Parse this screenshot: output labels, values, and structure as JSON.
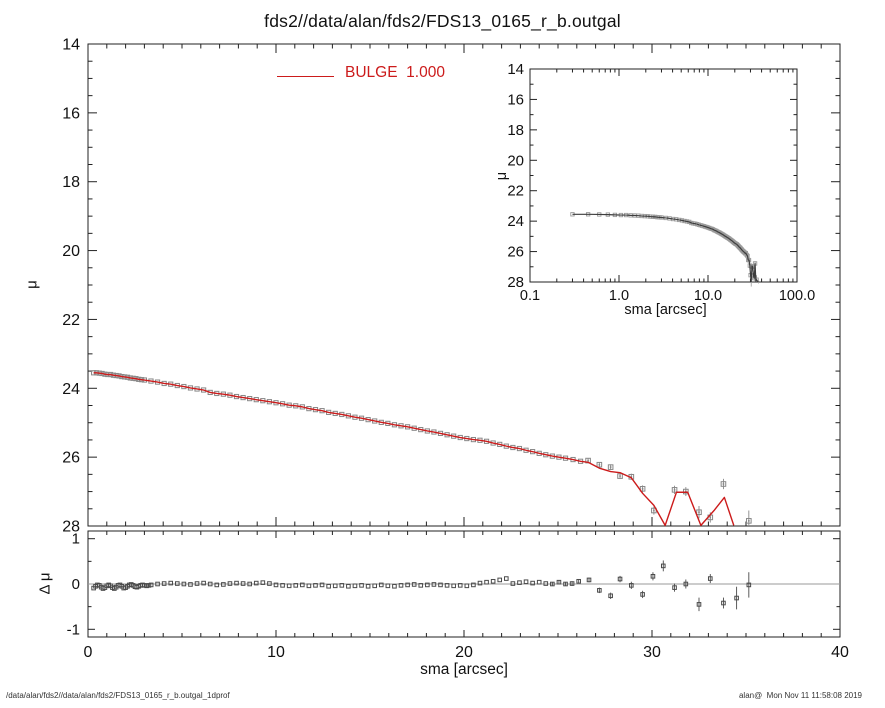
{
  "window": {
    "background": "#ffffff"
  },
  "footer": {
    "left": "/data/alan/fds2//data/alan/fds2/FDS13_0165_r_b.outgal_1dprof",
    "right": "alan@  Mon Nov 11 11:58:08 2019"
  },
  "chart_data": {
    "colors": {
      "axis": "#222222",
      "model_red": "#cc1b1b",
      "square_gray": "#878787",
      "inset_square": "#9a9a9a",
      "inset_line": "#3d3d3d",
      "residual_marker": "#4a4a4a",
      "zero_line": "#999999",
      "text": "#111111"
    },
    "main": {
      "type": "line+scatter",
      "title": "fds2//data/alan/fds2/FDS13_0165_r_b.outgal",
      "ylabel": "μ",
      "xlim": [
        0,
        40
      ],
      "ylim": [
        14,
        28
      ],
      "y_inverted": true,
      "xminor_step": 1,
      "yminor_step": 0.5,
      "ytick_values": [
        14,
        16,
        18,
        20,
        22,
        24,
        26,
        28
      ],
      "ytick_labels": [
        "14",
        "16",
        "18",
        "20",
        "22",
        "24",
        "26",
        "28"
      ],
      "legend": {
        "label": "BULGE  1.000",
        "color": "#cc1b1b",
        "series": "bulge-model"
      }
    },
    "inset": {
      "type": "line+scatter",
      "xlabel": "sma [arcsec]",
      "ylabel": "μ",
      "xscale": "log",
      "xlim": [
        0.1,
        100
      ],
      "ylim": [
        14,
        28
      ],
      "y_inverted": true,
      "xtick_values": [
        0.1,
        1,
        10,
        100
      ],
      "xtick_labels": [
        "0.1",
        "1.0",
        "10.0",
        "100.0"
      ],
      "ytick_values": [
        14,
        16,
        18,
        20,
        22,
        24,
        26,
        28
      ],
      "ytick_labels": [
        "14",
        "16",
        "18",
        "20",
        "22",
        "24",
        "26",
        "28"
      ],
      "yminor_step": 1
    },
    "residual_panel": {
      "type": "scatter",
      "xlabel": "sma [arcsec]",
      "ylabel": "Δ μ",
      "xlim": [
        0,
        40
      ],
      "ylim": [
        -1,
        1
      ],
      "xminor_step": 1,
      "yminor_step": 0.5,
      "xtick_values": [
        0,
        10,
        20,
        30,
        40
      ],
      "xtick_labels": [
        "0",
        "10",
        "20",
        "30",
        "40"
      ],
      "ytick_values": [
        1,
        0,
        -1
      ],
      "ytick_labels": [
        "1",
        "0",
        "-1"
      ],
      "zero_line": true
    },
    "profile_points": [
      [
        0.3,
        23.55
      ],
      [
        0.45,
        23.55
      ],
      [
        0.6,
        23.56
      ],
      [
        0.75,
        23.57
      ],
      [
        0.9,
        23.59
      ],
      [
        1.05,
        23.6
      ],
      [
        1.2,
        23.6
      ],
      [
        1.35,
        23.62
      ],
      [
        1.5,
        23.63
      ],
      [
        1.65,
        23.64
      ],
      [
        1.8,
        23.66
      ],
      [
        1.95,
        23.67
      ],
      [
        2.1,
        23.68
      ],
      [
        2.25,
        23.7
      ],
      [
        2.4,
        23.71
      ],
      [
        2.55,
        23.72
      ],
      [
        2.7,
        23.74
      ],
      [
        2.85,
        23.75
      ],
      [
        3.0,
        23.76
      ],
      [
        3.35,
        23.79
      ],
      [
        3.7,
        23.82
      ],
      [
        4.05,
        23.86
      ],
      [
        4.4,
        23.88
      ],
      [
        4.75,
        23.92
      ],
      [
        5.1,
        23.95
      ],
      [
        5.45,
        23.99
      ],
      [
        5.8,
        24.02
      ],
      [
        6.15,
        24.05
      ],
      [
        6.5,
        24.12
      ],
      [
        6.85,
        24.15
      ],
      [
        7.2,
        24.17
      ],
      [
        7.55,
        24.2
      ],
      [
        7.9,
        24.24
      ],
      [
        8.25,
        24.27
      ],
      [
        8.6,
        24.3
      ],
      [
        8.95,
        24.33
      ],
      [
        9.3,
        24.36
      ],
      [
        9.65,
        24.39
      ],
      [
        10.0,
        24.42
      ],
      [
        10.35,
        24.45
      ],
      [
        10.7,
        24.49
      ],
      [
        11.05,
        24.51
      ],
      [
        11.4,
        24.54
      ],
      [
        11.75,
        24.59
      ],
      [
        12.1,
        24.62
      ],
      [
        12.45,
        24.65
      ],
      [
        12.8,
        24.7
      ],
      [
        13.15,
        24.73
      ],
      [
        13.5,
        24.76
      ],
      [
        13.85,
        24.8
      ],
      [
        14.2,
        24.84
      ],
      [
        14.55,
        24.87
      ],
      [
        14.9,
        24.91
      ],
      [
        15.25,
        24.95
      ],
      [
        15.6,
        24.99
      ],
      [
        15.95,
        25.02
      ],
      [
        16.3,
        25.06
      ],
      [
        16.65,
        25.09
      ],
      [
        17.0,
        25.12
      ],
      [
        17.35,
        25.16
      ],
      [
        17.7,
        25.2
      ],
      [
        18.05,
        25.24
      ],
      [
        18.4,
        25.27
      ],
      [
        18.75,
        25.31
      ],
      [
        19.1,
        25.35
      ],
      [
        19.45,
        25.39
      ],
      [
        19.8,
        25.43
      ],
      [
        20.15,
        25.46
      ],
      [
        20.5,
        25.49
      ],
      [
        20.85,
        25.51
      ],
      [
        21.2,
        25.54
      ],
      [
        21.55,
        25.59
      ],
      [
        21.9,
        25.63
      ],
      [
        22.25,
        25.68
      ],
      [
        22.6,
        25.72
      ],
      [
        22.95,
        25.75
      ],
      [
        23.3,
        25.8
      ],
      [
        23.65,
        25.84
      ],
      [
        24.0,
        25.89
      ],
      [
        24.35,
        25.93
      ],
      [
        24.7,
        25.97
      ],
      [
        25.05,
        26.0
      ],
      [
        25.4,
        26.03
      ],
      [
        25.8,
        26.07
      ],
      [
        26.2,
        26.12
      ],
      [
        26.6,
        26.1,
        0.06
      ],
      [
        27.2,
        26.22,
        0.07
      ],
      [
        27.8,
        26.29,
        0.08
      ],
      [
        28.3,
        26.55,
        0.08
      ],
      [
        28.9,
        26.57,
        0.09
      ],
      [
        29.5,
        26.92,
        0.1
      ],
      [
        30.1,
        27.55,
        0.12
      ],
      [
        30.6,
        28.45,
        0.15
      ],
      [
        31.2,
        26.95,
        0.12
      ],
      [
        31.8,
        27.0,
        0.13
      ],
      [
        32.5,
        27.6,
        0.18
      ],
      [
        33.1,
        27.75,
        0.15
      ],
      [
        33.8,
        26.78,
        0.15
      ],
      [
        34.5,
        28.2,
        0.3
      ],
      [
        35.15,
        27.85,
        0.3
      ],
      [
        36.0,
        28.3,
        0.4
      ],
      [
        37.0,
        28.6,
        0.5
      ]
    ],
    "model_tail": [
      [
        26.6,
        26.15
      ],
      [
        27.2,
        26.32
      ],
      [
        27.8,
        26.42
      ],
      [
        28.3,
        26.45
      ],
      [
        28.9,
        26.6
      ],
      [
        29.5,
        27.05
      ],
      [
        30.1,
        27.4
      ],
      [
        30.7,
        28.1
      ],
      [
        31.3,
        27.02
      ],
      [
        31.9,
        27.02
      ],
      [
        32.6,
        28.12
      ],
      [
        33.3,
        27.55
      ],
      [
        33.85,
        27.17
      ],
      [
        34.35,
        28.2
      ]
    ],
    "residual_points": [
      [
        0.3,
        -0.09
      ],
      [
        0.4,
        -0.05
      ],
      [
        0.5,
        -0.02
      ],
      [
        0.6,
        -0.03
      ],
      [
        0.7,
        -0.07
      ],
      [
        0.8,
        -0.1
      ],
      [
        0.9,
        -0.08
      ],
      [
        1.0,
        -0.04
      ],
      [
        1.1,
        -0.02
      ],
      [
        1.2,
        -0.04
      ],
      [
        1.3,
        -0.08
      ],
      [
        1.4,
        -0.1
      ],
      [
        1.5,
        -0.07
      ],
      [
        1.6,
        -0.03
      ],
      [
        1.7,
        -0.02
      ],
      [
        1.8,
        -0.05
      ],
      [
        1.9,
        -0.09
      ],
      [
        2.0,
        -0.08
      ],
      [
        2.1,
        -0.05
      ],
      [
        2.2,
        -0.02
      ],
      [
        2.3,
        -0.01
      ],
      [
        2.4,
        -0.03
      ],
      [
        2.5,
        -0.06
      ],
      [
        2.6,
        -0.07
      ],
      [
        2.7,
        -0.05
      ],
      [
        2.8,
        -0.03
      ],
      [
        2.9,
        -0.02
      ],
      [
        3.0,
        -0.03
      ],
      [
        3.12,
        -0.04
      ],
      [
        3.24,
        -0.03
      ],
      [
        3.36,
        -0.02
      ],
      [
        3.7,
        0.0
      ],
      [
        4.05,
        0.01
      ],
      [
        4.4,
        0.02
      ],
      [
        4.75,
        0.01
      ],
      [
        5.1,
        0.0
      ],
      [
        5.45,
        -0.01
      ],
      [
        5.8,
        0.01
      ],
      [
        6.15,
        0.02
      ],
      [
        6.5,
        0.0
      ],
      [
        6.85,
        -0.02
      ],
      [
        7.2,
        -0.01
      ],
      [
        7.55,
        0.01
      ],
      [
        7.9,
        0.02
      ],
      [
        8.25,
        0.01
      ],
      [
        8.6,
        0.0
      ],
      [
        8.95,
        0.02
      ],
      [
        9.3,
        0.03
      ],
      [
        9.65,
        0.01
      ],
      [
        10.0,
        -0.02
      ],
      [
        10.35,
        -0.03
      ],
      [
        10.7,
        -0.04
      ],
      [
        11.05,
        -0.03
      ],
      [
        11.4,
        -0.02
      ],
      [
        11.75,
        -0.04
      ],
      [
        12.1,
        -0.03
      ],
      [
        12.45,
        -0.02
      ],
      [
        12.8,
        -0.05
      ],
      [
        13.15,
        -0.04
      ],
      [
        13.5,
        -0.03
      ],
      [
        13.85,
        -0.05
      ],
      [
        14.2,
        -0.04
      ],
      [
        14.55,
        -0.03
      ],
      [
        14.9,
        -0.05
      ],
      [
        15.25,
        -0.04
      ],
      [
        15.6,
        -0.02
      ],
      [
        15.95,
        -0.04
      ],
      [
        16.3,
        -0.05
      ],
      [
        16.65,
        -0.03
      ],
      [
        17.0,
        -0.02
      ],
      [
        17.35,
        -0.01
      ],
      [
        17.7,
        -0.03
      ],
      [
        18.05,
        -0.02
      ],
      [
        18.4,
        -0.01
      ],
      [
        18.75,
        -0.02
      ],
      [
        19.1,
        -0.03
      ],
      [
        19.45,
        -0.04
      ],
      [
        19.8,
        -0.03
      ],
      [
        20.15,
        -0.04
      ],
      [
        20.5,
        -0.02
      ],
      [
        20.85,
        0.02
      ],
      [
        21.2,
        0.04
      ],
      [
        21.55,
        0.06
      ],
      [
        21.9,
        0.09
      ],
      [
        22.25,
        0.12
      ],
      [
        22.6,
        0.01
      ],
      [
        22.95,
        0.03
      ],
      [
        23.3,
        0.05
      ],
      [
        23.65,
        0.02
      ],
      [
        24.0,
        0.04
      ],
      [
        24.35,
        0.01
      ],
      [
        24.7,
        0.0,
        0.04
      ],
      [
        25.05,
        0.04,
        0.04
      ],
      [
        25.4,
        0.0,
        0.04
      ],
      [
        25.75,
        0.01,
        0.05
      ],
      [
        26.1,
        0.06,
        0.05
      ],
      [
        26.65,
        0.09,
        0.05
      ],
      [
        27.2,
        -0.14,
        0.06
      ],
      [
        27.8,
        -0.26,
        0.07
      ],
      [
        28.3,
        0.11,
        0.07
      ],
      [
        28.9,
        -0.03,
        0.08
      ],
      [
        29.5,
        -0.23,
        0.08
      ],
      [
        30.05,
        0.17,
        0.09
      ],
      [
        30.6,
        0.4,
        0.12
      ],
      [
        31.2,
        -0.08,
        0.09
      ],
      [
        31.8,
        0.0,
        0.1
      ],
      [
        32.5,
        -0.45,
        0.15
      ],
      [
        33.1,
        0.12,
        0.1
      ],
      [
        33.8,
        -0.42,
        0.12
      ],
      [
        34.5,
        -0.31,
        0.25
      ],
      [
        35.15,
        -0.02,
        0.28
      ]
    ]
  }
}
